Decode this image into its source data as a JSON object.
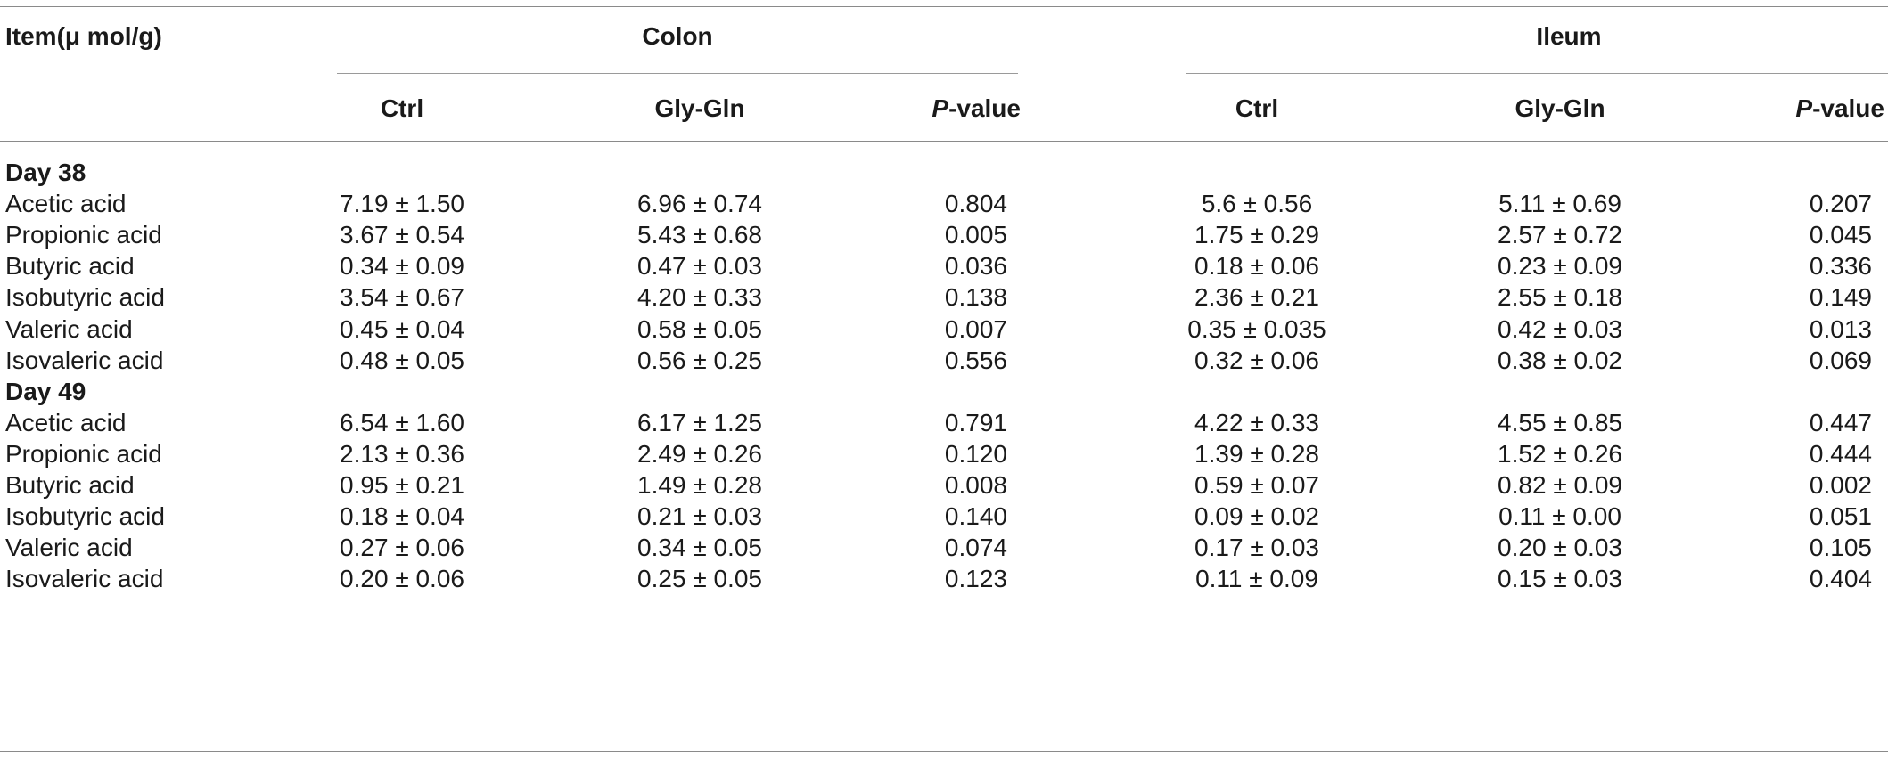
{
  "table": {
    "item_header": "Item(μ mol/g)",
    "groups": [
      {
        "label": "Colon",
        "columns": [
          "Ctrl",
          "Gly-Gln"
        ],
        "p_prefix": "P",
        "p_suffix": "-value"
      },
      {
        "label": "Ileum",
        "columns": [
          "Ctrl",
          "Gly-Gln"
        ],
        "p_prefix": "P",
        "p_suffix": "-value"
      }
    ],
    "sections": [
      {
        "label": "Day 38",
        "rows": [
          {
            "item": "Acetic acid",
            "values": [
              "7.19 ± 1.50",
              "6.96 ± 0.74",
              "0.804",
              "5.6 ± 0.56",
              "5.11 ± 0.69",
              "0.207"
            ]
          },
          {
            "item": "Propionic acid",
            "values": [
              "3.67 ± 0.54",
              "5.43 ± 0.68",
              "0.005",
              "1.75 ± 0.29",
              "2.57 ± 0.72",
              "0.045"
            ]
          },
          {
            "item": "Butyric acid",
            "values": [
              "0.34 ± 0.09",
              "0.47 ± 0.03",
              "0.036",
              "0.18 ± 0.06",
              "0.23 ± 0.09",
              "0.336"
            ]
          },
          {
            "item": "Isobutyric acid",
            "values": [
              "3.54 ± 0.67",
              "4.20 ± 0.33",
              "0.138",
              "2.36 ± 0.21",
              "2.55 ± 0.18",
              "0.149"
            ]
          },
          {
            "item": "Valeric acid",
            "values": [
              "0.45 ± 0.04",
              "0.58 ± 0.05",
              "0.007",
              "0.35 ± 0.035",
              "0.42 ± 0.03",
              "0.013"
            ]
          },
          {
            "item": "Isovaleric acid",
            "values": [
              "0.48 ± 0.05",
              "0.56 ± 0.25",
              "0.556",
              "0.32 ± 0.06",
              "0.38 ± 0.02",
              "0.069"
            ]
          }
        ]
      },
      {
        "label": "Day 49",
        "rows": [
          {
            "item": "Acetic acid",
            "values": [
              "6.54 ± 1.60",
              "6.17 ± 1.25",
              "0.791",
              "4.22 ± 0.33",
              "4.55 ± 0.85",
              "0.447"
            ]
          },
          {
            "item": "Propionic acid",
            "values": [
              "2.13 ± 0.36",
              "2.49 ± 0.26",
              "0.120",
              "1.39 ± 0.28",
              "1.52 ± 0.26",
              "0.444"
            ]
          },
          {
            "item": "Butyric acid",
            "values": [
              "0.95 ± 0.21",
              "1.49 ± 0.28",
              "0.008",
              "0.59 ± 0.07",
              "0.82 ± 0.09",
              "0.002"
            ]
          },
          {
            "item": "Isobutyric acid",
            "values": [
              "0.18 ± 0.04",
              "0.21 ± 0.03",
              "0.140",
              "0.09 ± 0.02",
              "0.11 ± 0.00",
              "0.051"
            ]
          },
          {
            "item": "Valeric acid",
            "values": [
              "0.27 ± 0.06",
              "0.34 ± 0.05",
              "0.074",
              "0.17 ± 0.03",
              "0.20 ± 0.03",
              "0.105"
            ]
          },
          {
            "item": "Isovaleric acid",
            "values": [
              "0.20 ± 0.06",
              "0.25 ± 0.05",
              "0.123",
              "0.11 ± 0.09",
              "0.15 ± 0.03",
              "0.404"
            ]
          }
        ]
      }
    ]
  }
}
